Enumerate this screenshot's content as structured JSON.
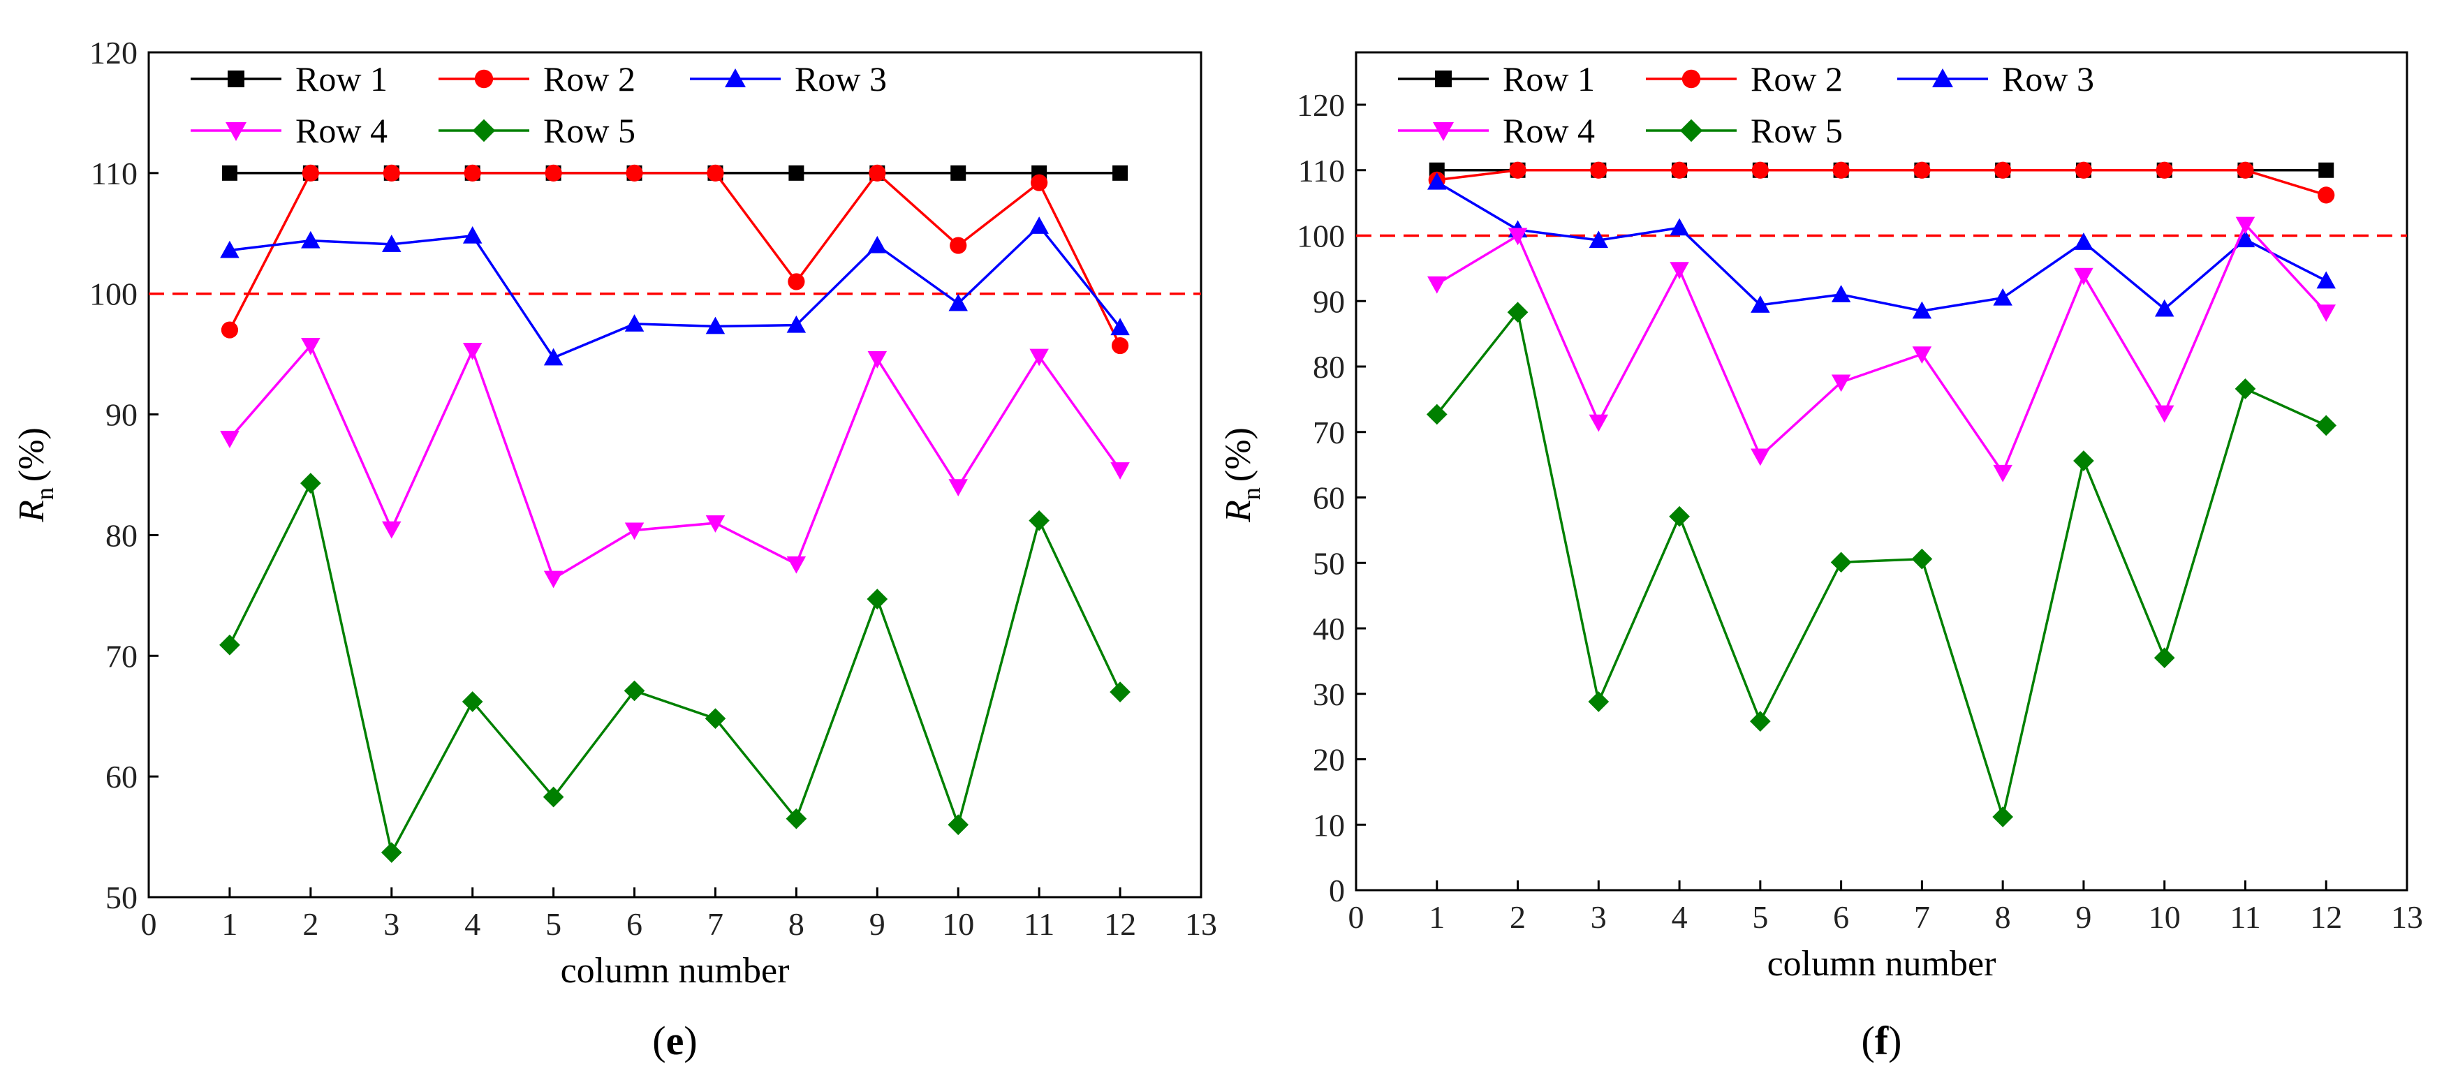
{
  "chart_data": [
    {
      "type": "line",
      "panel_label": "(e)",
      "xlabel": "column number",
      "ylabel_main": "R",
      "ylabel_sub": "n",
      "ylabel_unit": "(%)",
      "xlim": [
        0,
        13
      ],
      "ylim": [
        50,
        120
      ],
      "x_ticks": [
        0,
        1,
        2,
        3,
        4,
        5,
        6,
        7,
        8,
        9,
        10,
        11,
        12,
        13
      ],
      "y_ticks": [
        50,
        60,
        70,
        80,
        90,
        100,
        110,
        120
      ],
      "reference_line": 100,
      "x": [
        1,
        2,
        3,
        4,
        5,
        6,
        7,
        8,
        9,
        10,
        11,
        12
      ],
      "series": [
        {
          "name": "Row 1",
          "color": "#000000",
          "marker": "square",
          "values": [
            110,
            110,
            110,
            110,
            110,
            110,
            110,
            110,
            110,
            110,
            110,
            110
          ]
        },
        {
          "name": "Row 2",
          "color": "#ff0000",
          "marker": "circle",
          "values": [
            97,
            110,
            110,
            110,
            110,
            110,
            110,
            101,
            110,
            104,
            109.2,
            95.7
          ]
        },
        {
          "name": "Row 3",
          "color": "#0000ff",
          "marker": "triangle-up",
          "values": [
            103.6,
            104.4,
            104.1,
            104.8,
            94.7,
            97.5,
            97.3,
            97.4,
            104,
            99.2,
            105.6,
            97.2
          ]
        },
        {
          "name": "Row 4",
          "color": "#ff00ff",
          "marker": "triangle-down",
          "values": [
            88,
            95.7,
            80.5,
            95.3,
            76.4,
            80.4,
            81,
            77.6,
            94.6,
            84,
            94.8,
            85.4
          ]
        },
        {
          "name": "Row 5",
          "color": "#008000",
          "marker": "diamond",
          "values": [
            70.9,
            84.3,
            53.7,
            66.2,
            58.3,
            67.1,
            64.8,
            56.5,
            74.7,
            56,
            81.2,
            67
          ]
        }
      ]
    },
    {
      "type": "line",
      "panel_label": "(f)",
      "xlabel": "column number",
      "ylabel_main": "R",
      "ylabel_sub": "n",
      "ylabel_unit": "(%)",
      "xlim": [
        0,
        13
      ],
      "ylim": [
        0,
        128
      ],
      "x_ticks": [
        0,
        1,
        2,
        3,
        4,
        5,
        6,
        7,
        8,
        9,
        10,
        11,
        12,
        13
      ],
      "y_ticks": [
        0,
        10,
        20,
        30,
        40,
        50,
        60,
        70,
        80,
        90,
        100,
        110,
        120
      ],
      "reference_line": 100,
      "x": [
        1,
        2,
        3,
        4,
        5,
        6,
        7,
        8,
        9,
        10,
        11,
        12
      ],
      "series": [
        {
          "name": "Row 1",
          "color": "#000000",
          "marker": "square",
          "values": [
            110,
            110,
            110,
            110,
            110,
            110,
            110,
            110,
            110,
            110,
            110,
            110
          ]
        },
        {
          "name": "Row 2",
          "color": "#ff0000",
          "marker": "circle",
          "values": [
            108.5,
            110,
            110,
            110,
            110,
            110,
            110,
            110,
            110,
            110,
            110,
            106.2
          ]
        },
        {
          "name": "Row 3",
          "color": "#0000ff",
          "marker": "triangle-up",
          "values": [
            108.2,
            100.9,
            99.3,
            101.2,
            89.4,
            91,
            88.5,
            90.5,
            99,
            88.8,
            99.4,
            93.1
          ]
        },
        {
          "name": "Row 4",
          "color": "#ff00ff",
          "marker": "triangle-down",
          "values": [
            92.6,
            100,
            71.5,
            94.8,
            66.3,
            77.6,
            81.9,
            63.8,
            93.9,
            72.9,
            101.7,
            88.3
          ]
        },
        {
          "name": "Row 5",
          "color": "#008000",
          "marker": "diamond",
          "values": [
            72.7,
            88.3,
            28.8,
            57.1,
            25.8,
            50.1,
            50.6,
            11.2,
            65.6,
            35.5,
            76.6,
            71
          ]
        }
      ]
    }
  ]
}
